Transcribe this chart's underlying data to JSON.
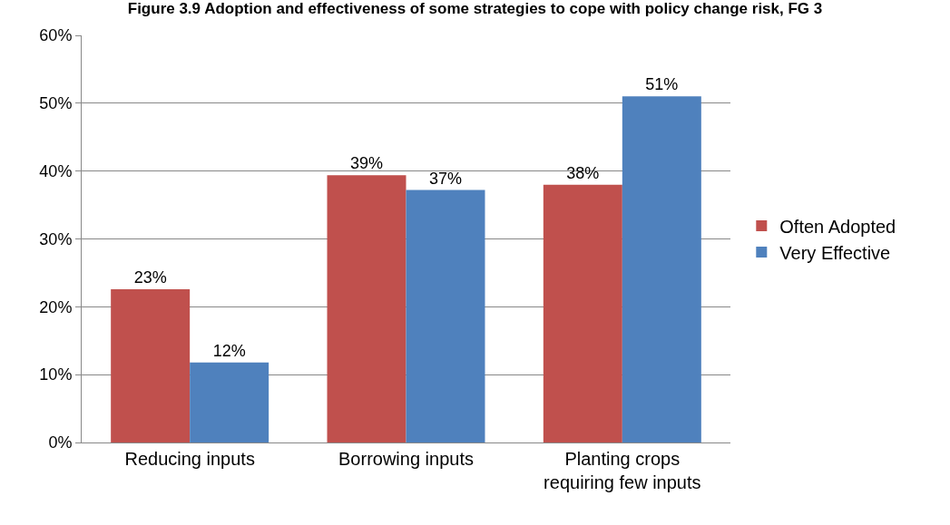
{
  "chart_data": {
    "type": "bar",
    "title": "Figure 3.9 Adoption and effectiveness of some strategies to cope with policy change risk, FG 3",
    "categories": [
      "Reducing inputs",
      "Borrowing inputs",
      "Planting crops\nrequiring few inputs"
    ],
    "series": [
      {
        "name": "Often Adopted",
        "color": "#c0504d",
        "values": [
          0.226,
          0.394,
          0.38
        ],
        "value_labels": [
          "23%",
          "39%",
          "38%"
        ]
      },
      {
        "name": "Very Effective",
        "color": "#4f81bd",
        "values": [
          0.118,
          0.372,
          0.51
        ],
        "value_labels": [
          "12%",
          "37%",
          "51%"
        ]
      }
    ],
    "ylim": [
      0,
      0.6
    ],
    "yticks": [
      {
        "value": 0,
        "label": "0%"
      },
      {
        "value": 0.1,
        "label": "10%"
      },
      {
        "value": 0.2,
        "label": "20%"
      },
      {
        "value": 0.3,
        "label": "30%"
      },
      {
        "value": 0.4,
        "label": "40%"
      },
      {
        "value": 0.5,
        "label": "50%"
      },
      {
        "value": 0.6,
        "label": "60%"
      }
    ],
    "grid": "y",
    "legend": "right"
  }
}
